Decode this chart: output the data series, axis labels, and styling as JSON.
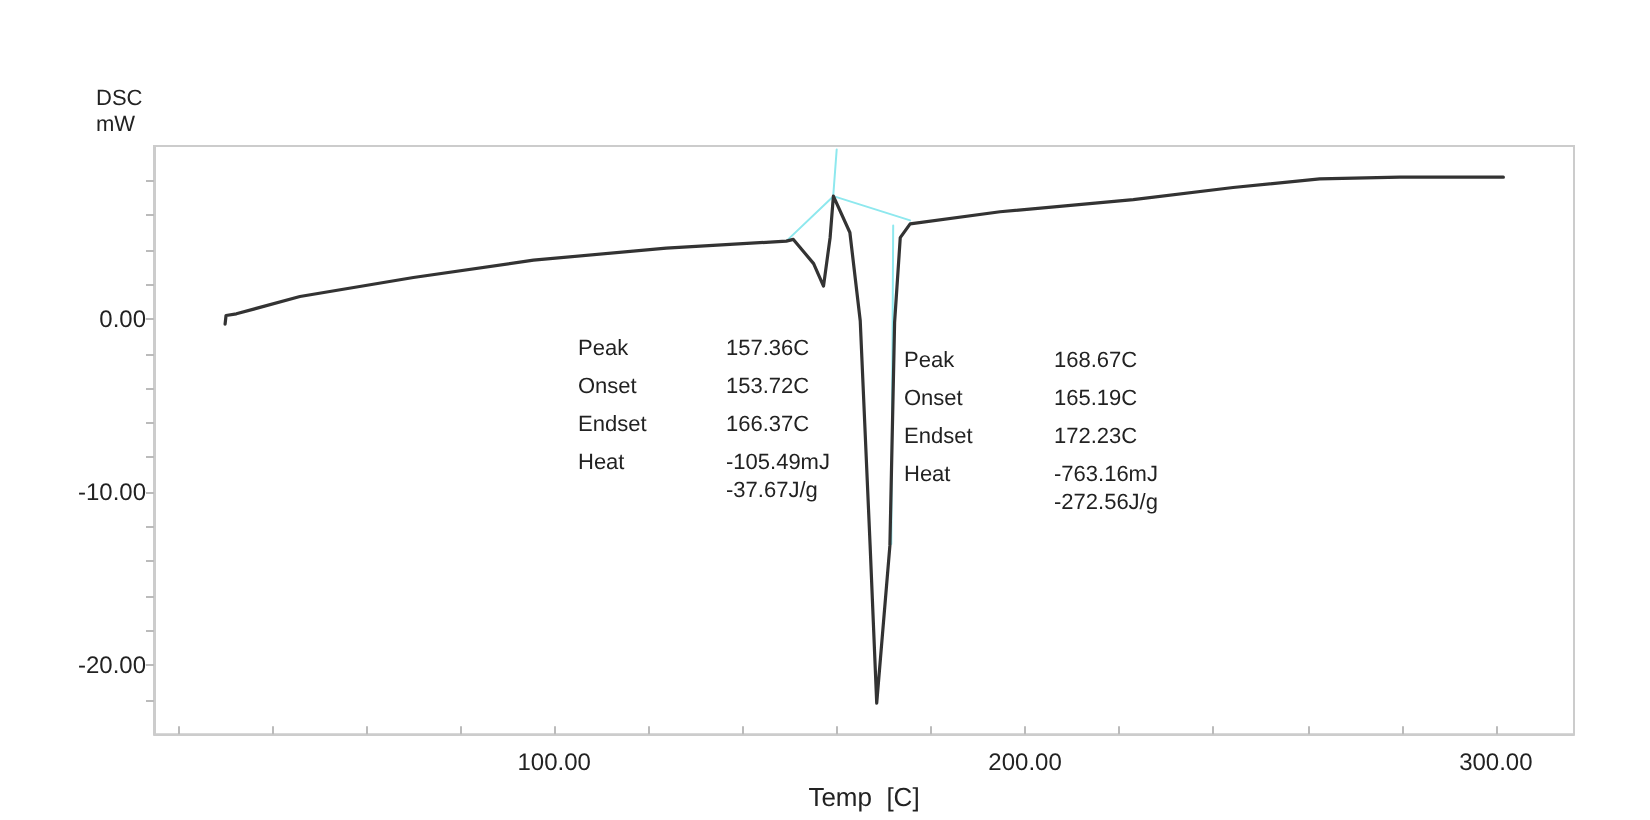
{
  "chart_data": {
    "type": "line",
    "xlabel": "Temp  [C]",
    "ylabel": "DSC\nmW",
    "annotations": [
      "Peak\t157.36C\nOnset\t153.72C\nEndset\t166.37C\nHeat\t-105.49mJ\n\t-37.67J/g",
      "Peak\t168.67C\nOnset\t165.19C\nEndset\t172.23C\nHeat\t-763.16mJ\n\t-272.56J/g"
    ],
    "series": [
      {
        "color": "#333333",
        "x": [
          30.1,
          30.3,
          32.5,
          46,
          70.1,
          95.6,
          123.8,
          149.3,
          150.8,
          155.1,
          157.2,
          158.6,
          159.3,
          162.8,
          165,
          167.1,
          168.5,
          168.8,
          171.3,
          172.3,
          173.5,
          175.6,
          194.7,
          223,
          244.2,
          262.6,
          279.6,
          301.6
        ],
        "values": [
          -0.3,
          0.2,
          0.3,
          1.3,
          2.4,
          3.4,
          4.1,
          4.5,
          4.6,
          3.2,
          1.9,
          4.7,
          7.1,
          5.0,
          -0.1,
          -13.1,
          -22.2,
          -22.2,
          -13.1,
          -0.2,
          4.7,
          5.5,
          6.2,
          6.9,
          7.6,
          8.1,
          8.2,
          8.2
        ]
      },
      {
        "color": "#8ee8ee",
        "x": [
          149.3,
          159.3,
          175.6
        ],
        "values": [
          4.5,
          7.1,
          5.7
        ]
      },
      {
        "color": "#8ee8ee",
        "x": [
          158.6,
          160
        ],
        "values": [
          4.7,
          9.8
        ]
      },
      {
        "color": "#8ee8ee",
        "x": [
          172,
          171.6
        ],
        "values": [
          5.4,
          -13
        ]
      }
    ],
    "xlim": [
      15,
      316.6
    ],
    "ylim": [
      -24,
      10
    ],
    "xticks": [
      {
        "value": 20,
        "label": null
      },
      {
        "value": 40,
        "label": null
      },
      {
        "value": 60,
        "label": null
      },
      {
        "value": 80,
        "label": null
      },
      {
        "value": 100,
        "label": "100.00"
      },
      {
        "value": 120,
        "label": null
      },
      {
        "value": 140,
        "label": null
      },
      {
        "value": 160,
        "label": null
      },
      {
        "value": 180,
        "label": null
      },
      {
        "value": 200,
        "label": "200.00"
      },
      {
        "value": 220,
        "label": null
      },
      {
        "value": 240,
        "label": null
      },
      {
        "value": 260,
        "label": null
      },
      {
        "value": 280,
        "label": null
      },
      {
        "value": 300,
        "label": "300.00"
      }
    ],
    "yticks": [
      {
        "value": -22,
        "label": null
      },
      {
        "value": -20,
        "label": "-20.00"
      },
      {
        "value": -18,
        "label": null
      },
      {
        "value": -16,
        "label": null
      },
      {
        "value": -14,
        "label": null
      },
      {
        "value": -12,
        "label": null
      },
      {
        "value": -10,
        "label": "-10.00"
      },
      {
        "value": -8,
        "label": null
      },
      {
        "value": -6,
        "label": null
      },
      {
        "value": -4,
        "label": null
      },
      {
        "value": -2,
        "label": null
      },
      {
        "value": 0,
        "label": "0.00"
      },
      {
        "value": 2,
        "label": null
      },
      {
        "value": 4,
        "label": null
      },
      {
        "value": 6,
        "label": null
      },
      {
        "value": 8,
        "label": null
      }
    ],
    "marker": "none",
    "line_style": "solid"
  }
}
